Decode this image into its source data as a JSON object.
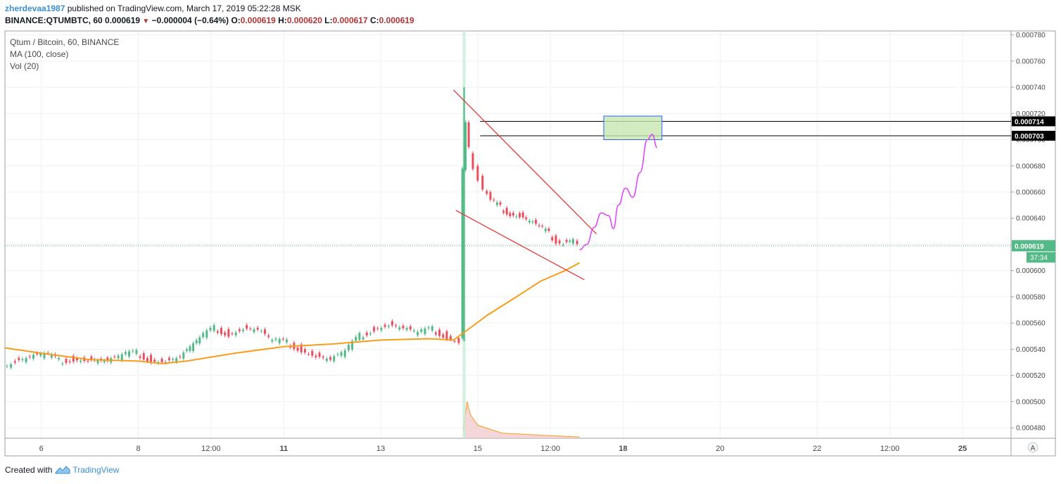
{
  "header": {
    "author": "zherdevaa1987",
    "published": "published on TradingView.com, March 17, 2019 05:22:28 MSK",
    "symbol": "BINANCE:QTUMBTC, 60",
    "last": "0.000619",
    "change": "−0.000004 (−0.64%)",
    "open_label": "O:",
    "open": "0.000619",
    "high_label": "H:",
    "high": "0.000620",
    "low_label": "L:",
    "low": "0.000617",
    "close_label": "C:",
    "close": "0.000619"
  },
  "legend": {
    "series": "Qtum / Bitcoin, 60, BINANCE",
    "ma": "MA (100, close)",
    "vol": "Vol (20)"
  },
  "footer": {
    "created_with": "Created with",
    "brand": "TradingView"
  },
  "colors": {
    "up": "#53b987",
    "down": "#eb4d5c",
    "ma": "#f89d1b",
    "trendline": "#e53935",
    "projection": "#e040fb",
    "zone_fill": "#c8e6b0",
    "zone_border": "#2962ff",
    "last_price_badge": "#53b987",
    "level_badge": "#000000"
  },
  "chart_data": {
    "type": "candlestick",
    "y_range": [
      0.000472,
      0.000783
    ],
    "y_ticks": [
      "0.000480",
      "0.000500",
      "0.000520",
      "0.000540",
      "0.000560",
      "0.000580",
      "0.000600",
      "0.000620",
      "0.000640",
      "0.000660",
      "0.000680",
      "0.000700",
      "0.000720",
      "0.000740",
      "0.000760",
      "0.000780"
    ],
    "x_ticks": [
      {
        "label": "6",
        "day": 6,
        "bold": false
      },
      {
        "label": "8",
        "day": 8,
        "bold": false
      },
      {
        "label": "12:00",
        "day": 9.5,
        "bold": false
      },
      {
        "label": "11",
        "day": 11,
        "bold": true
      },
      {
        "label": "13",
        "day": 13,
        "bold": false
      },
      {
        "label": "15",
        "day": 15,
        "bold": false
      },
      {
        "label": "12:00",
        "day": 16.5,
        "bold": false
      },
      {
        "label": "18",
        "day": 18,
        "bold": true
      },
      {
        "label": "20",
        "day": 20,
        "bold": false
      },
      {
        "label": "22",
        "day": 22,
        "bold": false
      },
      {
        "label": "12:00",
        "day": 23.5,
        "bold": false
      },
      {
        "label": "25",
        "day": 25,
        "bold": true
      }
    ],
    "x_range_days": [
      5.25,
      26.0
    ],
    "last_price": "0.000619",
    "countdown": "37:34",
    "levels": [
      "0.000714",
      "0.000703"
    ],
    "ma_path": [
      [
        5.25,
        0.000541
      ],
      [
        6,
        0.000537
      ],
      [
        7,
        0.000532
      ],
      [
        8,
        0.000531
      ],
      [
        8.5,
        0.000529
      ],
      [
        9,
        0.000531
      ],
      [
        10,
        0.000537
      ],
      [
        11,
        0.000542
      ],
      [
        12,
        0.000544
      ],
      [
        13,
        0.000547
      ],
      [
        14,
        0.000548
      ],
      [
        14.5,
        0.000547
      ],
      [
        14.8,
        0.000555
      ],
      [
        15.2,
        0.000566
      ],
      [
        15.8,
        0.00058
      ],
      [
        16.3,
        0.000592
      ],
      [
        16.8,
        0.0006
      ],
      [
        17.1,
        0.000606
      ]
    ],
    "price_path": [
      [
        5.25,
        0.000527
      ],
      [
        5.5,
        0.000531
      ],
      [
        5.8,
        0.000534
      ],
      [
        6.1,
        0.000536
      ],
      [
        6.4,
        0.000531
      ],
      [
        6.7,
        0.000533
      ],
      [
        7.0,
        0.000532
      ],
      [
        7.4,
        0.000531
      ],
      [
        7.7,
        0.000535
      ],
      [
        8.0,
        0.000537
      ],
      [
        8.3,
        0.000532
      ],
      [
        8.6,
        0.000531
      ],
      [
        8.9,
        0.000534
      ],
      [
        9.3,
        0.000548
      ],
      [
        9.6,
        0.000556
      ],
      [
        9.9,
        0.000552
      ],
      [
        10.2,
        0.000556
      ],
      [
        10.5,
        0.000555
      ],
      [
        10.8,
        0.000546
      ],
      [
        11.1,
        0.000545
      ],
      [
        11.4,
        0.00054
      ],
      [
        11.7,
        0.000535
      ],
      [
        12.0,
        0.000532
      ],
      [
        12.3,
        0.000538
      ],
      [
        12.6,
        0.00055
      ],
      [
        12.9,
        0.000556
      ],
      [
        13.2,
        0.000559
      ],
      [
        13.5,
        0.000556
      ],
      [
        13.8,
        0.000552
      ],
      [
        14.1,
        0.000555
      ],
      [
        14.4,
        0.00055
      ],
      [
        14.65,
        0.000546
      ],
      [
        14.72,
        0.000678
      ],
      [
        14.78,
        0.000712
      ],
      [
        14.85,
        0.000692
      ],
      [
        14.95,
        0.00068
      ],
      [
        15.05,
        0.00067
      ],
      [
        15.15,
        0.000662
      ],
      [
        15.3,
        0.000653
      ],
      [
        15.5,
        0.000648
      ],
      [
        15.7,
        0.000644
      ],
      [
        15.9,
        0.000642
      ],
      [
        16.1,
        0.000638
      ],
      [
        16.3,
        0.000633
      ],
      [
        16.5,
        0.000628
      ],
      [
        16.65,
        0.000623
      ],
      [
        16.8,
        0.000621
      ],
      [
        17.0,
        0.000624
      ],
      [
        17.1,
        0.000619
      ]
    ],
    "volume_profile": [
      [
        14.7,
        0.000478
      ],
      [
        14.78,
        0.0005
      ],
      [
        14.85,
        0.00049
      ],
      [
        15.0,
        0.000482
      ],
      [
        15.5,
        0.000476
      ],
      [
        16.5,
        0.000474
      ],
      [
        17.1,
        0.000473
      ]
    ],
    "trendline_upper": [
      [
        14.5,
        0.000738
      ],
      [
        17.45,
        0.000628
      ]
    ],
    "trendline_lower": [
      [
        14.55,
        0.000646
      ],
      [
        17.2,
        0.000593
      ]
    ],
    "projection_path": [
      [
        17.1,
        0.000616
      ],
      [
        17.25,
        0.00062
      ],
      [
        17.4,
        0.000633
      ],
      [
        17.55,
        0.000644
      ],
      [
        17.7,
        0.000642
      ],
      [
        17.8,
        0.000632
      ],
      [
        17.9,
        0.00065
      ],
      [
        18.05,
        0.000663
      ],
      [
        18.2,
        0.000656
      ],
      [
        18.35,
        0.000675
      ],
      [
        18.5,
        0.0007
      ],
      [
        18.6,
        0.000704
      ],
      [
        18.7,
        0.000694
      ]
    ],
    "zone": {
      "x_from": 17.6,
      "x_to": 18.8,
      "y_from": 0.0007,
      "y_to": 0.000718
    },
    "level_lines": [
      {
        "value": 0.000714,
        "x_from": 15.05
      },
      {
        "value": 0.000703,
        "x_from": 15.05
      }
    ]
  }
}
